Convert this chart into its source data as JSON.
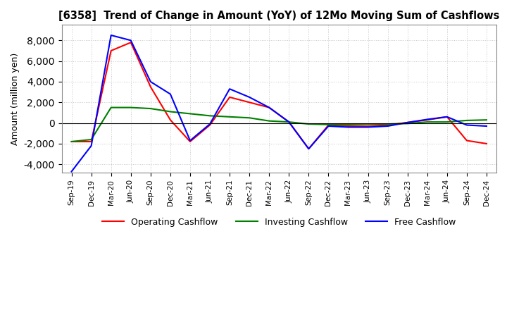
{
  "title": "[6358]  Trend of Change in Amount (YoY) of 12Mo Moving Sum of Cashflows",
  "ylabel": "Amount (million yen)",
  "ylim": [
    -4800,
    9500
  ],
  "yticks": [
    -4000,
    -2000,
    0,
    2000,
    4000,
    6000,
    8000
  ],
  "x_labels": [
    "Sep-19",
    "Dec-19",
    "Mar-20",
    "Jun-20",
    "Sep-20",
    "Dec-20",
    "Mar-21",
    "Jun-21",
    "Sep-21",
    "Dec-21",
    "Mar-22",
    "Jun-22",
    "Sep-22",
    "Dec-22",
    "Mar-23",
    "Jun-23",
    "Sep-23",
    "Dec-23",
    "Mar-24",
    "Jun-24",
    "Sep-24",
    "Dec-24"
  ],
  "operating": [
    -1800,
    -1800,
    7000,
    7800,
    3500,
    300,
    -1800,
    -200,
    2500,
    2000,
    1500,
    100,
    -2500,
    -200,
    -300,
    -300,
    -200,
    50,
    300,
    600,
    -1700,
    -2000
  ],
  "investing": [
    -1800,
    -1600,
    1500,
    1500,
    1400,
    1100,
    900,
    700,
    600,
    500,
    200,
    100,
    -100,
    -150,
    -150,
    -100,
    -100,
    -50,
    100,
    100,
    250,
    300
  ],
  "free": [
    -4700,
    -2200,
    8500,
    8000,
    4000,
    2800,
    -1700,
    -100,
    3300,
    2500,
    1500,
    100,
    -2500,
    -300,
    -400,
    -400,
    -300,
    50,
    350,
    600,
    -200,
    -300
  ],
  "colors": {
    "operating": "#ff0000",
    "investing": "#008000",
    "free": "#0000ff"
  },
  "legend_labels": [
    "Operating Cashflow",
    "Investing Cashflow",
    "Free Cashflow"
  ],
  "background_color": "#ffffff",
  "grid_color": "#c8c8c8"
}
